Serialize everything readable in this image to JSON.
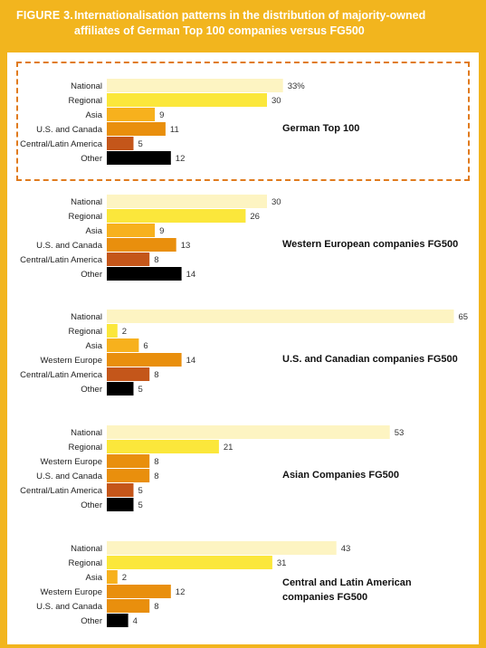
{
  "header": {
    "figure_label": "FIGURE  3.",
    "title": "Internationalisation patterns in the distribution of majority-owned affiliates of German Top 100 companies versus FG500"
  },
  "colors": {
    "background": "#f2b51e",
    "National": "#fdf4c2",
    "Regional": "#fbe73b",
    "Asia": "#f7b11d",
    "U.S. and Canada": "#e98f0d",
    "Western Europe": "#e98f0d",
    "Central/Latin America": "#c4561a",
    "Other": "#000000",
    "highlight_border": "#e07b1e"
  },
  "chart_data": [
    {
      "type": "bar",
      "orientation": "horizontal",
      "title": "German Top 100",
      "highlighted": true,
      "categories": [
        "National",
        "Regional",
        "Asia",
        "U.S. and Canada",
        "Central/Latin America",
        "Other"
      ],
      "values": [
        33,
        30,
        9,
        11,
        5,
        12
      ],
      "value_labels": [
        "33%",
        "30",
        "9",
        "11",
        "5",
        "12"
      ],
      "xlim": [
        0,
        70
      ]
    },
    {
      "type": "bar",
      "orientation": "horizontal",
      "title": "Western European companies FG500",
      "categories": [
        "National",
        "Regional",
        "Asia",
        "U.S. and Canada",
        "Central/Latin America",
        "Other"
      ],
      "values": [
        30,
        26,
        9,
        13,
        8,
        14
      ],
      "value_labels": [
        "30",
        "26",
        "9",
        "13",
        "8",
        "14"
      ],
      "xlim": [
        0,
        70
      ]
    },
    {
      "type": "bar",
      "orientation": "horizontal",
      "title": "U.S. and Canadian companies FG500",
      "categories": [
        "National",
        "Regional",
        "Asia",
        "Western Europe",
        "Central/Latin America",
        "Other"
      ],
      "values": [
        65,
        2,
        6,
        14,
        8,
        5
      ],
      "value_labels": [
        "65",
        "2",
        "6",
        "14",
        "8",
        "5"
      ],
      "xlim": [
        0,
        70
      ]
    },
    {
      "type": "bar",
      "orientation": "horizontal",
      "title": "Asian Companies FG500",
      "categories": [
        "National",
        "Regional",
        "Western Europe",
        "U.S. and Canada",
        "Central/Latin America",
        "Other"
      ],
      "values": [
        53,
        21,
        8,
        8,
        5,
        5
      ],
      "value_labels": [
        "53",
        "21",
        "8",
        "8",
        "5",
        "5"
      ],
      "xlim": [
        0,
        70
      ]
    },
    {
      "type": "bar",
      "orientation": "horizontal",
      "title": "Central and Latin American companies FG500",
      "categories": [
        "National",
        "Regional",
        "Asia",
        "Western Europe",
        "U.S. and Canada",
        "Other"
      ],
      "values": [
        43,
        31,
        2,
        12,
        8,
        4
      ],
      "value_labels": [
        "43",
        "31",
        "2",
        "12",
        "8",
        "4"
      ],
      "xlim": [
        0,
        70
      ]
    }
  ]
}
